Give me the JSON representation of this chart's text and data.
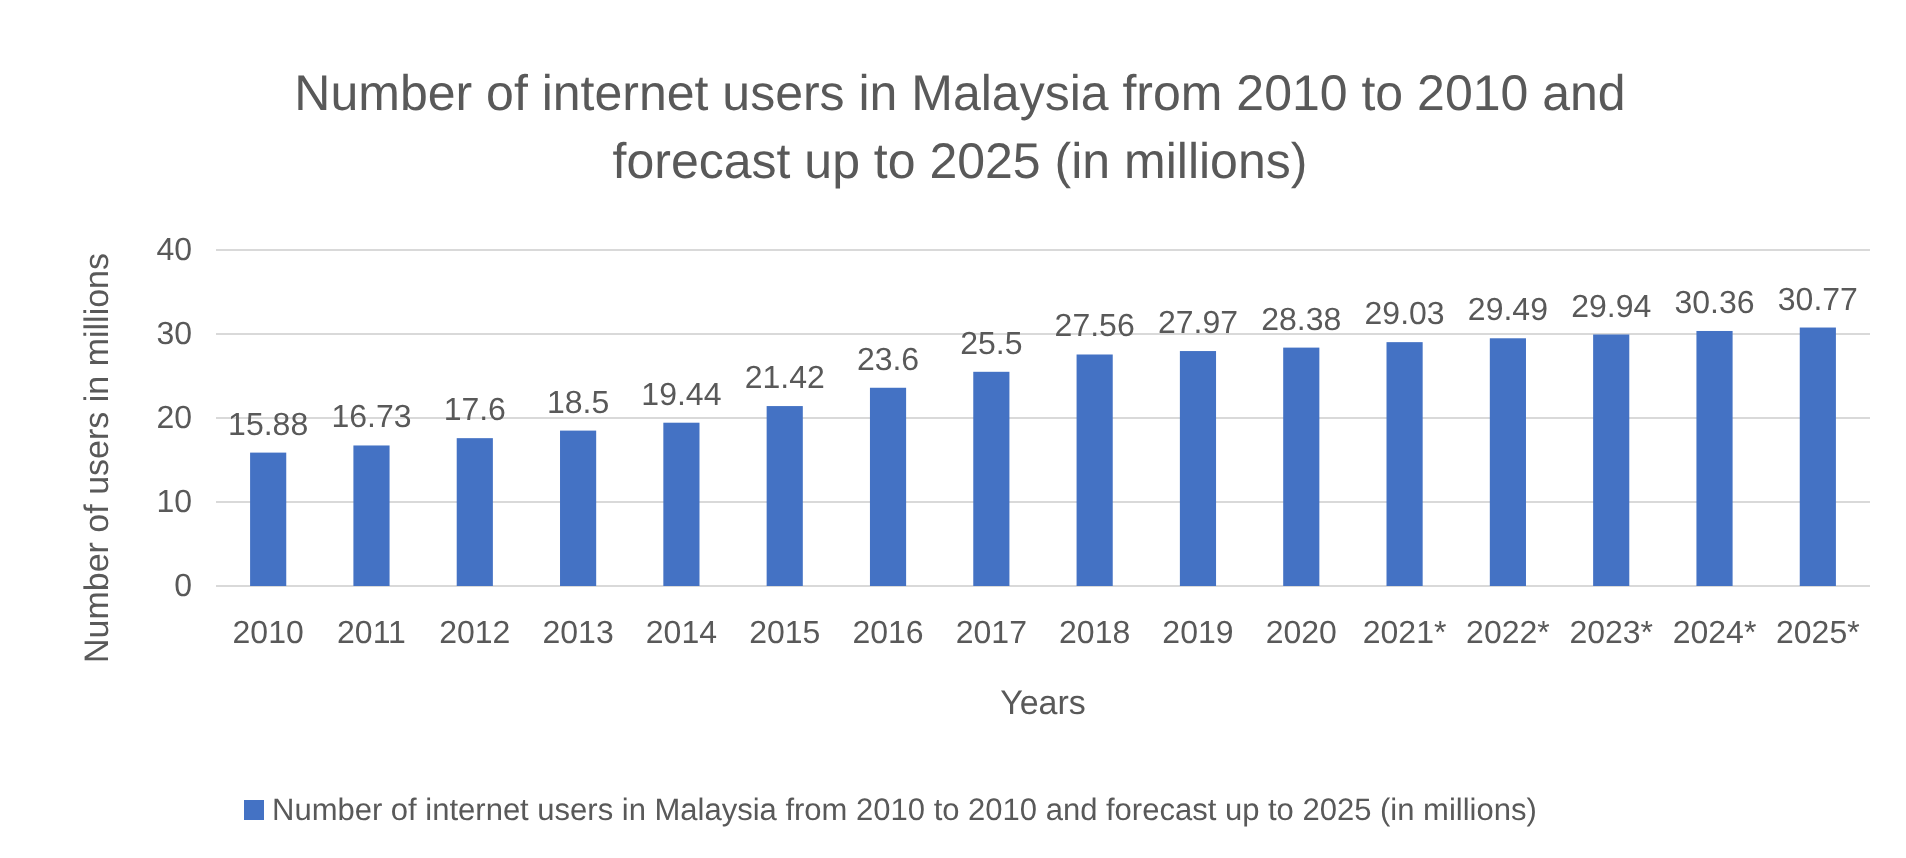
{
  "chart_data": {
    "type": "bar",
    "title": "Number of internet users in Malaysia from 2010 to 2010 and forecast up to 2025 (in millions)",
    "xlabel": "Years",
    "ylabel": "Number of users in millions",
    "categories": [
      "2010",
      "2011",
      "2012",
      "2013",
      "2014",
      "2015",
      "2016",
      "2017",
      "2018",
      "2019",
      "2020",
      "2021*",
      "2022*",
      "2023*",
      "2024*",
      "2025*"
    ],
    "series": [
      {
        "name": "Number of internet users in Malaysia from 2010 to 2010 and forecast up to 2025 (in millions)",
        "color": "#4472c4",
        "values": [
          15.88,
          16.73,
          17.6,
          18.5,
          19.44,
          21.42,
          23.6,
          25.5,
          27.56,
          27.97,
          28.38,
          29.03,
          29.49,
          29.94,
          30.36,
          30.77
        ]
      }
    ],
    "ylim": [
      0,
      40
    ],
    "yticks": [
      0,
      10,
      20,
      30,
      40
    ],
    "grid": "y",
    "legend": "bottom",
    "data_labels": true
  }
}
